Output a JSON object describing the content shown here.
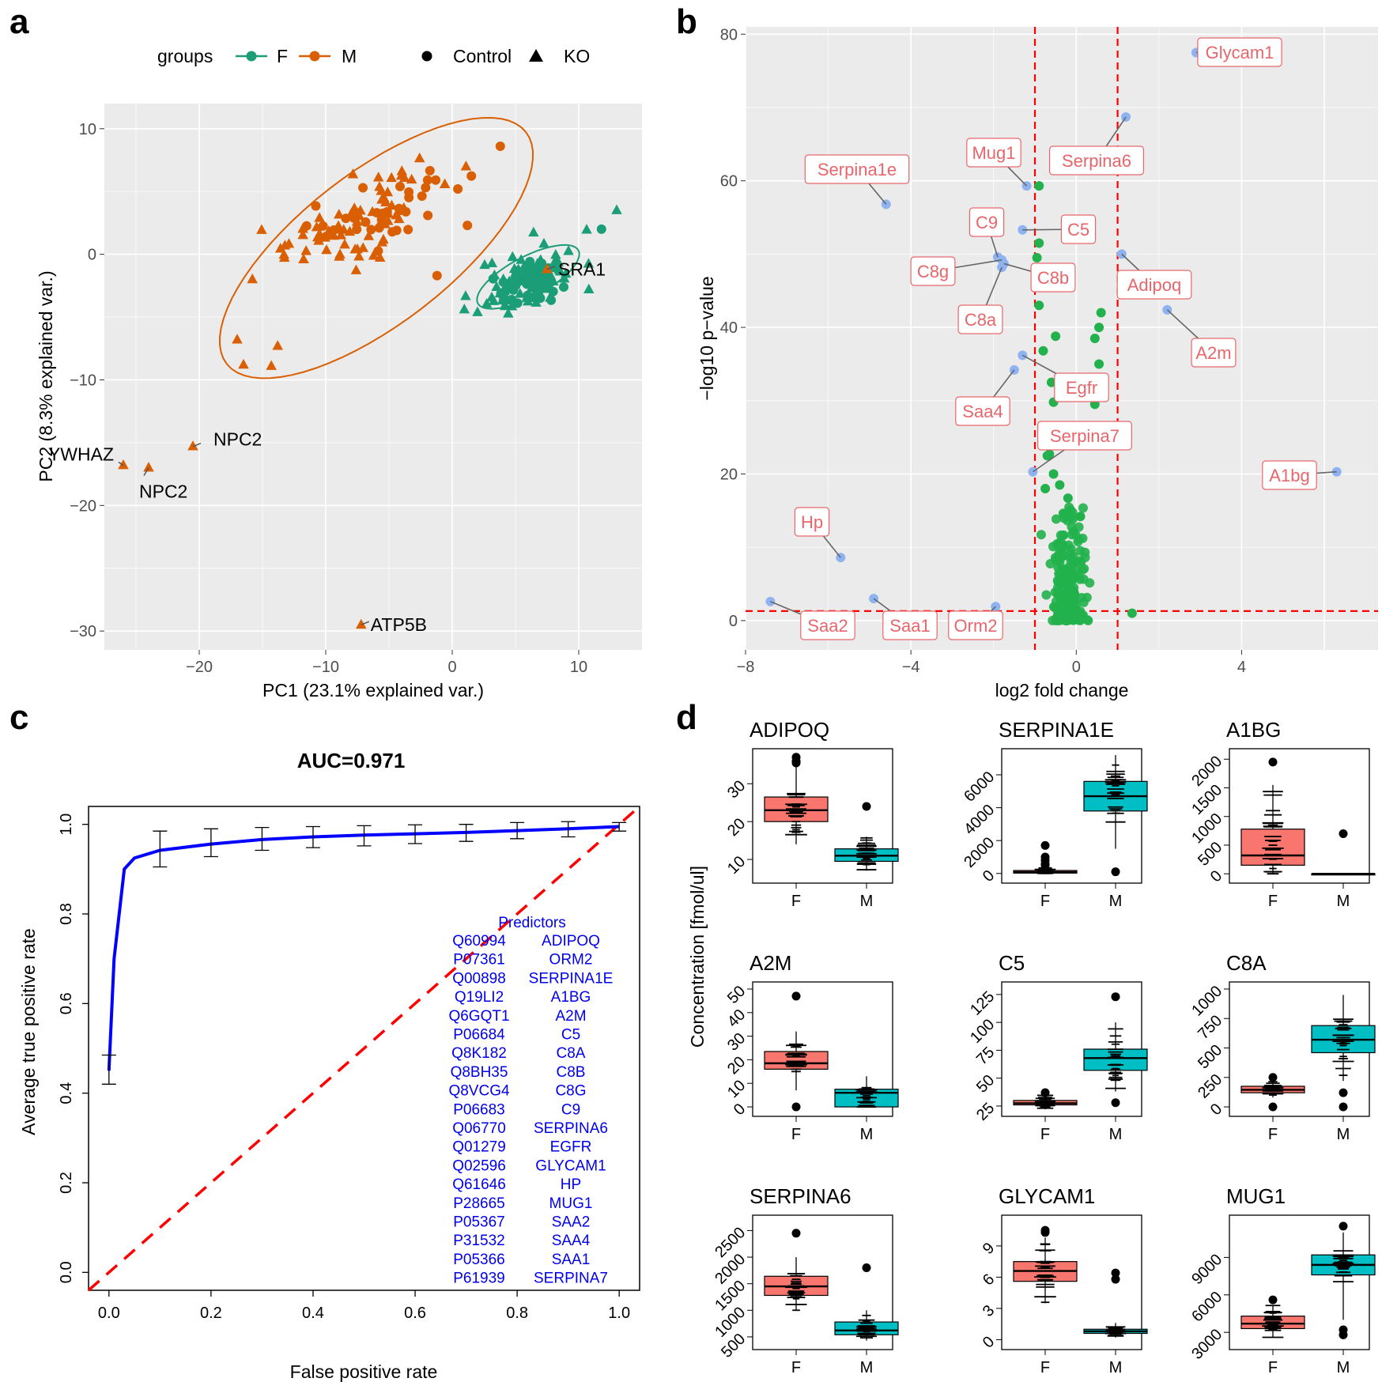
{
  "panels": {
    "a": "a",
    "b": "b",
    "c": "c",
    "d": "d"
  },
  "colors": {
    "female": "#1b9e77",
    "male": "#d95f02",
    "sig": "#8fb3f0",
    "nonsig": "#22b14c",
    "label": "#e8666b",
    "roc": "#0000ff",
    "diag": "#ff0000",
    "boxF": "#f8766d",
    "boxM": "#00bfc4",
    "panel_bg": "#ebebeb"
  },
  "chart_data": [
    {
      "id": "a",
      "type": "scatter",
      "xlabel": "PC1 (23.1% explained var.)",
      "ylabel": "PC2 (8.3% explained var.)",
      "xlim": [
        -27.5,
        15
      ],
      "ylim": [
        -31.5,
        12
      ],
      "xticks": [
        -20,
        -10,
        0,
        10
      ],
      "yticks": [
        10,
        0,
        -10,
        -20,
        -30
      ],
      "legend": {
        "title": "groups",
        "groups": [
          "F",
          "M"
        ],
        "shapes": [
          "Control",
          "KO"
        ]
      },
      "ellipses": [
        {
          "group": "M",
          "center": [
            -6,
            0.5
          ],
          "semi_axes": [
            15,
            6
          ],
          "angle_deg": 38
        },
        {
          "group": "F",
          "center": [
            6,
            -1.8
          ],
          "semi_axes": [
            4.5,
            1.6
          ],
          "angle_deg": 28
        }
      ],
      "clusters": [
        {
          "group": "M",
          "shape": "KO",
          "n": 70,
          "center": [
            -7.5,
            2.5
          ],
          "spread": [
            4.5,
            3
          ],
          "corr": 0.7,
          "seed": 3
        },
        {
          "group": "M",
          "shape": "Control",
          "n": 35,
          "center": [
            -6,
            3
          ],
          "spread": [
            3.5,
            2.3
          ],
          "corr": 0.6,
          "seed": 7
        },
        {
          "group": "F",
          "shape": "KO",
          "n": 75,
          "center": [
            6,
            -2
          ],
          "spread": [
            2.5,
            1.8
          ],
          "corr": 0.4,
          "seed": 11
        },
        {
          "group": "F",
          "shape": "Control",
          "n": 55,
          "center": [
            6,
            -2.2
          ],
          "spread": [
            1.5,
            1
          ],
          "corr": 0.3,
          "seed": 13
        }
      ],
      "points": [
        {
          "x": -26,
          "y": -16.8,
          "group": "M",
          "shape": "KO"
        },
        {
          "x": -24,
          "y": -17,
          "group": "M",
          "shape": "KO"
        },
        {
          "x": -20.5,
          "y": -15.3,
          "group": "M",
          "shape": "KO"
        },
        {
          "x": -7.2,
          "y": -29.5,
          "group": "M",
          "shape": "KO"
        },
        {
          "x": -17,
          "y": -6.8,
          "group": "M",
          "shape": "KO"
        },
        {
          "x": -15.8,
          "y": -2,
          "group": "M",
          "shape": "KO"
        },
        {
          "x": -16.5,
          "y": -8.8,
          "group": "M",
          "shape": "KO"
        },
        {
          "x": -14.3,
          "y": -8.9,
          "group": "M",
          "shape": "KO"
        },
        {
          "x": -13.8,
          "y": -7.3,
          "group": "M",
          "shape": "KO"
        },
        {
          "x": 7.5,
          "y": -1.2,
          "group": "M",
          "shape": "KO"
        },
        {
          "x": 3.8,
          "y": 8.6,
          "group": "M",
          "shape": "Control"
        },
        {
          "x": 1.2,
          "y": 2.3,
          "group": "M",
          "shape": "Control"
        },
        {
          "x": -1.2,
          "y": -1.7,
          "group": "M",
          "shape": "Control"
        },
        {
          "x": 13,
          "y": 3.5,
          "group": "F",
          "shape": "KO"
        },
        {
          "x": 11.8,
          "y": 2,
          "group": "F",
          "shape": "Control"
        },
        {
          "x": 10.8,
          "y": -2.8,
          "group": "F",
          "shape": "KO"
        }
      ],
      "annotations": [
        {
          "text": "SRA1",
          "x": 7.5,
          "y": -1.2
        },
        {
          "text": "YWHAZ",
          "x": -26,
          "y": -16.8
        },
        {
          "text": "NPC2",
          "x": -20.5,
          "y": -15.3
        },
        {
          "text": "NPC2",
          "x": -24,
          "y": -17
        },
        {
          "text": "ATP5B",
          "x": -7.2,
          "y": -29.5
        }
      ]
    },
    {
      "id": "b",
      "type": "scatter",
      "xlabel": "log2 fold change",
      "ylabel": "−log10 p−value",
      "xlim": [
        -8,
        7.3
      ],
      "ylim": [
        -4,
        81
      ],
      "xticks": [
        -8,
        -4,
        0,
        4
      ],
      "yticks": [
        0,
        20,
        40,
        60,
        80
      ],
      "thresholds": {
        "x": [
          -1,
          1
        ],
        "y": 1.3
      },
      "labeled_points": [
        {
          "label": "Glycam1",
          "x": 2.9,
          "y": 77.5
        },
        {
          "label": "Serpina6",
          "x": 1.2,
          "y": 68.7
        },
        {
          "label": "Serpina1e",
          "x": -4.6,
          "y": 56.8
        },
        {
          "label": "Mug1",
          "x": -1.2,
          "y": 59.3
        },
        {
          "label": "C5",
          "x": -1.3,
          "y": 53.3
        },
        {
          "label": "C9",
          "x": -1.9,
          "y": 49.6
        },
        {
          "label": "C8g",
          "x": -1.8,
          "y": 49.2
        },
        {
          "label": "C8b",
          "x": -1.75,
          "y": 48.7
        },
        {
          "label": "C8a",
          "x": -1.8,
          "y": 48.2
        },
        {
          "label": "Adipoq",
          "x": 1.1,
          "y": 50
        },
        {
          "label": "A2m",
          "x": 2.2,
          "y": 42.4
        },
        {
          "label": "Egfr",
          "x": -1.3,
          "y": 36.2
        },
        {
          "label": "Saa4",
          "x": -1.5,
          "y": 34.2
        },
        {
          "label": "Serpina7",
          "x": -1.05,
          "y": 20.3
        },
        {
          "label": "A1bg",
          "x": 6.3,
          "y": 20.3
        },
        {
          "label": "Hp",
          "x": -5.7,
          "y": 8.6
        },
        {
          "label": "Saa2",
          "x": -7.4,
          "y": 2.6
        },
        {
          "label": "Saa1",
          "x": -4.9,
          "y": 3
        },
        {
          "label": "Orm2",
          "x": -1.95,
          "y": 1.9
        }
      ],
      "nonsig_points": [
        {
          "x": -0.9,
          "y": 59.3
        },
        {
          "x": -0.9,
          "y": 51.5
        },
        {
          "x": -0.95,
          "y": 49.5
        },
        {
          "x": -0.85,
          "y": 45.5
        },
        {
          "x": -0.9,
          "y": 43
        },
        {
          "x": -0.5,
          "y": 38.8
        },
        {
          "x": -0.8,
          "y": 36.8
        },
        {
          "x": -0.6,
          "y": 32.5
        },
        {
          "x": -0.55,
          "y": 29.8
        },
        {
          "x": 0.6,
          "y": 42
        },
        {
          "x": 0.55,
          "y": 40
        },
        {
          "x": 0.45,
          "y": 38.5
        },
        {
          "x": 0.55,
          "y": 35
        },
        {
          "x": 0.6,
          "y": 33
        },
        {
          "x": 0.5,
          "y": 30.8
        },
        {
          "x": 0.45,
          "y": 29.5
        },
        {
          "x": -0.7,
          "y": 22.5
        },
        {
          "x": -0.65,
          "y": 22.7
        },
        {
          "x": -0.55,
          "y": 20
        },
        {
          "x": -0.4,
          "y": 18.5
        },
        {
          "x": -0.75,
          "y": 18
        },
        {
          "x": -0.2,
          "y": 16.7
        },
        {
          "x": 0.1,
          "y": 14.2
        },
        {
          "x": 1.35,
          "y": 1
        }
      ],
      "cloud": {
        "n": 210,
        "center_x": -0.2,
        "spread_x": 0.35,
        "max_y": 15.5,
        "seed": 21
      }
    },
    {
      "id": "c",
      "type": "line",
      "title": "AUC=0.971",
      "xlabel": "False positive rate",
      "ylabel": "Average true positive rate",
      "xlim": [
        -0.04,
        1.04
      ],
      "ylim": [
        -0.04,
        1.04
      ],
      "xticks": [
        "0.0",
        "0.2",
        "0.4",
        "0.6",
        "0.8",
        "1.0"
      ],
      "yticks": [
        "0.0",
        "0.2",
        "0.4",
        "0.6",
        "0.8",
        "1.0"
      ],
      "roc": {
        "x": [
          0,
          0.01,
          0.03,
          0.05,
          0.1,
          0.2,
          0.3,
          0.4,
          0.5,
          0.6,
          0.7,
          0.8,
          0.9,
          1.0
        ],
        "y": [
          0.45,
          0.7,
          0.9,
          0.925,
          0.942,
          0.956,
          0.966,
          0.972,
          0.976,
          0.979,
          0.982,
          0.986,
          0.99,
          0.995
        ]
      },
      "error_bars": [
        {
          "x": 0,
          "lo": 0.42,
          "hi": 0.485
        },
        {
          "x": 0.1,
          "lo": 0.905,
          "hi": 0.985
        },
        {
          "x": 0.2,
          "lo": 0.928,
          "hi": 0.99
        },
        {
          "x": 0.3,
          "lo": 0.942,
          "hi": 0.993
        },
        {
          "x": 0.4,
          "lo": 0.948,
          "hi": 0.995
        },
        {
          "x": 0.5,
          "lo": 0.952,
          "hi": 0.997
        },
        {
          "x": 0.6,
          "lo": 0.957,
          "hi": 0.999
        },
        {
          "x": 0.7,
          "lo": 0.962,
          "hi": 1.0
        },
        {
          "x": 0.8,
          "lo": 0.968,
          "hi": 1.004
        },
        {
          "x": 0.9,
          "lo": 0.972,
          "hi": 1.006
        },
        {
          "x": 1.0,
          "lo": 0.985,
          "hi": 1.004
        }
      ],
      "predictors_title": "Predictors",
      "predictors": [
        [
          "Q60994",
          "ADIPOQ"
        ],
        [
          "P07361",
          "ORM2"
        ],
        [
          "Q00898",
          "SERPINA1E"
        ],
        [
          "Q19LI2",
          "A1BG"
        ],
        [
          "Q6GQT1",
          "A2M"
        ],
        [
          "P06684",
          "C5"
        ],
        [
          "Q8K182",
          "C8A"
        ],
        [
          "Q8BH35",
          "C8B"
        ],
        [
          "Q8VCG4",
          "C8G"
        ],
        [
          "P06683",
          "C9"
        ],
        [
          "Q06770",
          "SERPINA6"
        ],
        [
          "Q01279",
          "EGFR"
        ],
        [
          "Q02596",
          "GLYCAM1"
        ],
        [
          "Q61646",
          "HP"
        ],
        [
          "P28665",
          "MUG1"
        ],
        [
          "P05367",
          "SAA2"
        ],
        [
          "P31532",
          "SAA4"
        ],
        [
          "P05366",
          "SAA1"
        ],
        [
          "P61939",
          "SERPINA7"
        ]
      ]
    },
    {
      "id": "d",
      "type": "box",
      "ylabel": "Concentration [fmol/ul]",
      "categories": [
        "F",
        "M"
      ],
      "plots": [
        {
          "title": "ADIPOQ",
          "ymin": 5,
          "ymax": 38,
          "ticks": [
            10,
            20,
            30
          ],
          "F": {
            "q1": 20,
            "med": 23,
            "q3": 26.5,
            "wlo": 14,
            "whi": 35,
            "out": [
              36,
              37,
              35.5
            ]
          },
          "M": {
            "q1": 9.5,
            "med": 11,
            "q3": 12.8,
            "wlo": 7,
            "whi": 16,
            "out": [
              24
            ]
          }
        },
        {
          "title": "SERPINA1E",
          "ymin": -300,
          "ymax": 7300,
          "ticks": [
            0,
            2000,
            4000,
            6000
          ],
          "F": {
            "q1": 20,
            "med": 80,
            "q3": 180,
            "wlo": 0,
            "whi": 400,
            "out": [
              1700,
              1000,
              800,
              600,
              500
            ]
          },
          "M": {
            "q1": 3800,
            "med": 4700,
            "q3": 5600,
            "wlo": 1500,
            "whi": 7200,
            "out": [
              100
            ]
          }
        },
        {
          "title": "A1BG",
          "ymin": -80,
          "ymax": 2100,
          "ticks": [
            0,
            500,
            1000,
            1500,
            2000
          ],
          "F": {
            "q1": 150,
            "med": 320,
            "q3": 780,
            "wlo": 0,
            "whi": 1550,
            "out": [
              1950
            ]
          },
          "M": {
            "q1": 0,
            "med": 0,
            "q3": 0,
            "wlo": 0,
            "whi": 0,
            "out": [
              700
            ]
          }
        },
        {
          "title": "A2M",
          "ymin": -2,
          "ymax": 51,
          "ticks": [
            0,
            10,
            20,
            30,
            40,
            50
          ],
          "F": {
            "q1": 16,
            "med": 18.5,
            "q3": 23.5,
            "wlo": 7,
            "whi": 32,
            "out": [
              0,
              47
            ]
          },
          "M": {
            "q1": 0,
            "med": 6,
            "q3": 7.5,
            "wlo": 0,
            "whi": 13,
            "out": []
          }
        },
        {
          "title": "C5",
          "ymin": 20,
          "ymax": 132,
          "ticks": [
            25,
            50,
            75,
            100,
            125
          ],
          "F": {
            "q1": 26,
            "med": 27.5,
            "q3": 30,
            "wlo": 22,
            "whi": 35,
            "out": [
              37
            ]
          },
          "M": {
            "q1": 57,
            "med": 68,
            "q3": 76,
            "wlo": 38,
            "whi": 100,
            "out": [
              28,
              123
            ]
          }
        },
        {
          "title": "C8A",
          "ymin": -40,
          "ymax": 1020,
          "ticks": [
            0,
            250,
            500,
            750,
            1000
          ],
          "F": {
            "q1": 120,
            "med": 145,
            "q3": 175,
            "wlo": 80,
            "whi": 220,
            "out": [
              0,
              250
            ]
          },
          "M": {
            "q1": 460,
            "med": 570,
            "q3": 690,
            "wlo": 220,
            "whi": 950,
            "out": [
              0,
              120
            ]
          }
        },
        {
          "title": "SERPINA6",
          "ymin": 350,
          "ymax": 2700,
          "ticks": [
            500,
            1000,
            1500,
            2000,
            2500
          ],
          "F": {
            "q1": 1280,
            "med": 1450,
            "q3": 1640,
            "wlo": 1000,
            "whi": 2000,
            "out": [
              2450
            ]
          },
          "M": {
            "q1": 540,
            "med": 620,
            "q3": 780,
            "wlo": 430,
            "whi": 1000,
            "out": [
              1800
            ]
          }
        },
        {
          "title": "GLYCAM1",
          "ymin": -0.5,
          "ymax": 11.5,
          "ticks": [
            0,
            3,
            6,
            9
          ],
          "F": {
            "q1": 5.6,
            "med": 6.6,
            "q3": 7.5,
            "wlo": 3.5,
            "whi": 9.8,
            "out": [
              10.3,
              10.5
            ]
          },
          "M": {
            "q1": 0.6,
            "med": 0.8,
            "q3": 1.0,
            "wlo": 0.2,
            "whi": 1.6,
            "out": [
              5.8,
              6.4
            ]
          }
        },
        {
          "title": "MUG1",
          "ymin": 2000,
          "ymax": 12000,
          "ticks": [
            3000,
            6000,
            9000
          ],
          "F": {
            "q1": 3300,
            "med": 3700,
            "q3": 4300,
            "wlo": 2600,
            "whi": 5200,
            "out": [
              5600
            ]
          },
          "M": {
            "q1": 7600,
            "med": 8400,
            "q3": 9200,
            "wlo": 4000,
            "whi": 11000,
            "out": [
              2800,
              3200,
              11500
            ]
          }
        }
      ]
    }
  ]
}
